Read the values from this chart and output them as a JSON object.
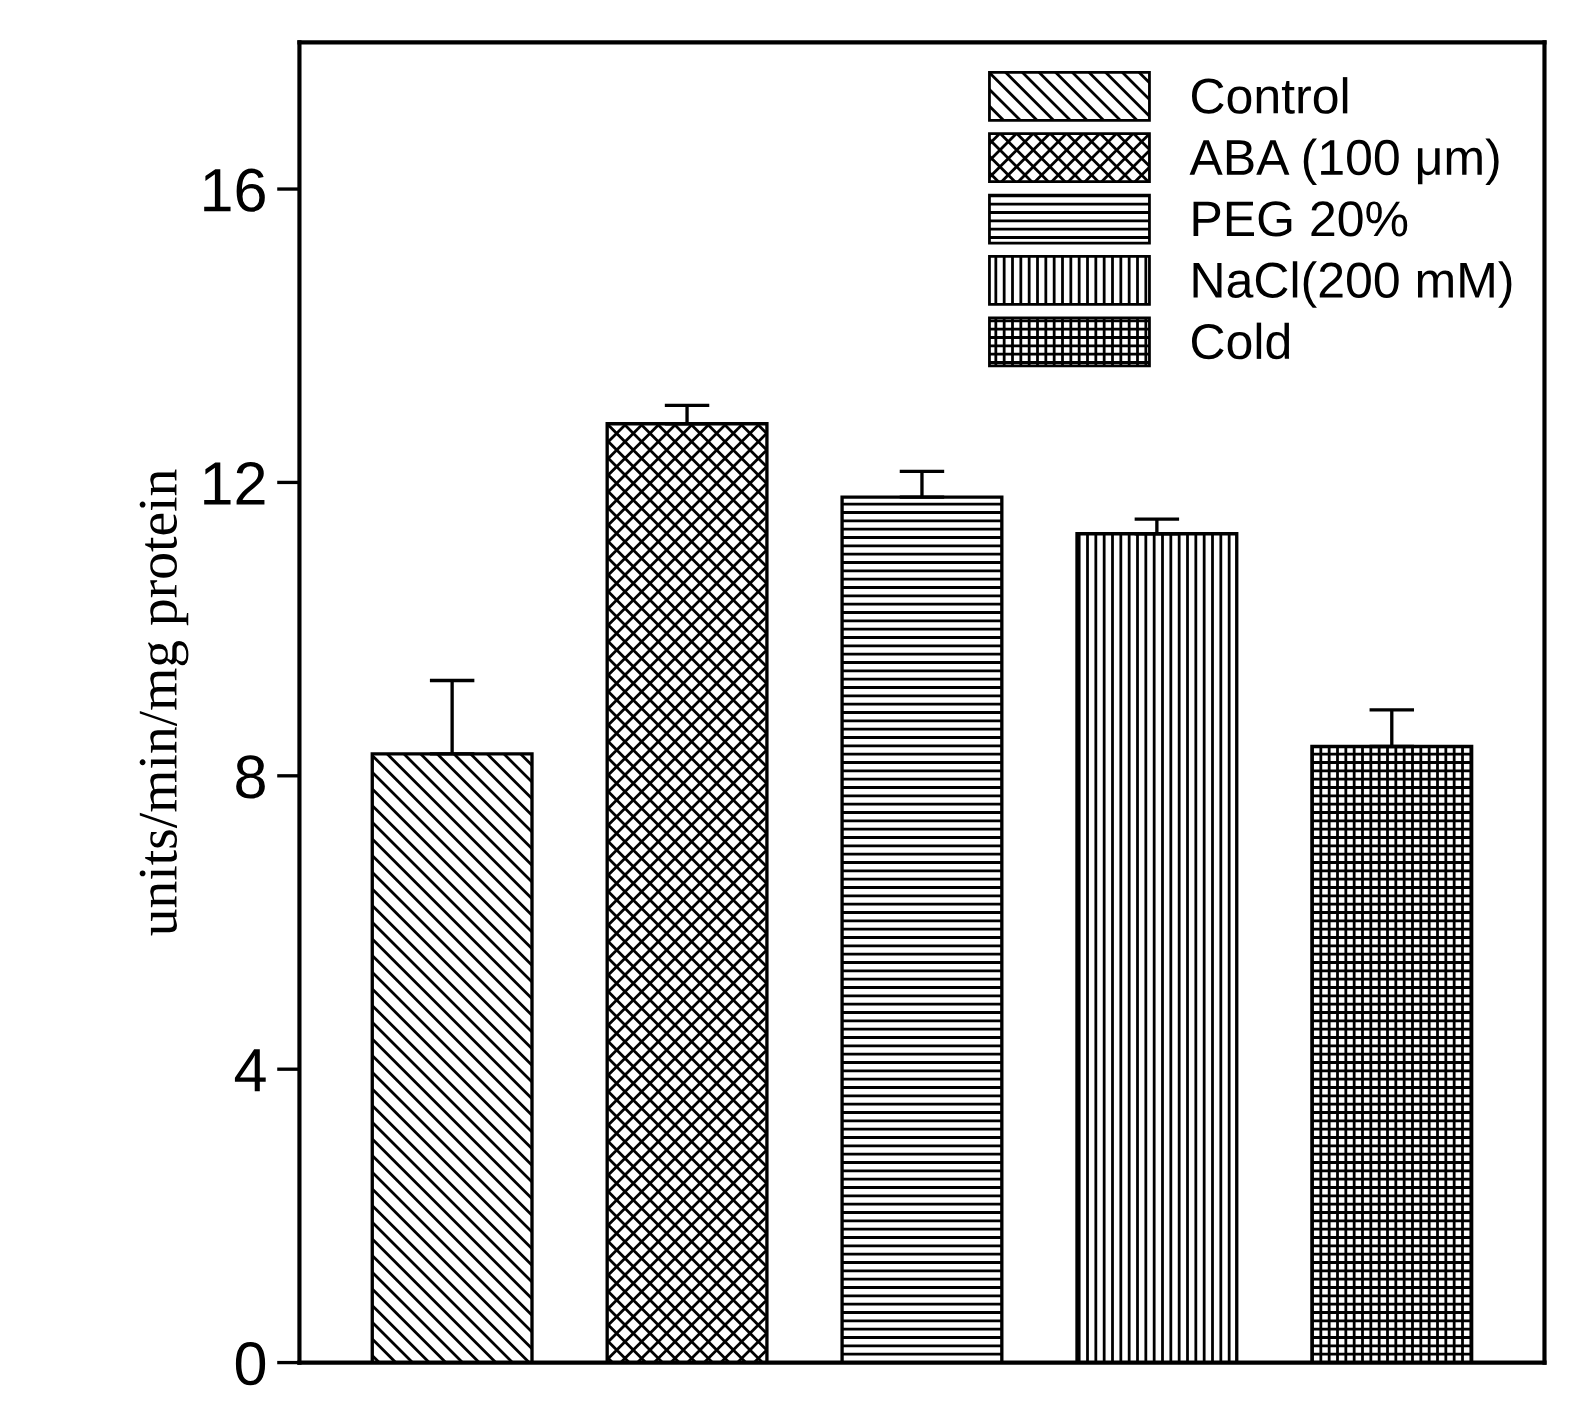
{
  "chart_data": {
    "type": "bar",
    "ylabel": "units/min/mg protein",
    "categories": [
      null,
      null,
      null,
      null,
      null
    ],
    "series": [
      {
        "name": "Control",
        "color": "#000000",
        "values": [
          8.3,
          null,
          null,
          null,
          null
        ],
        "errors": [
          1.0,
          null,
          null,
          null,
          null
        ]
      },
      {
        "name": "ABA (100 μm)",
        "color": "#000000",
        "values": [
          null,
          12.8,
          null,
          null,
          null
        ],
        "errors": [
          null,
          0.25,
          null,
          null,
          null
        ]
      },
      {
        "name": "PEG 20%",
        "color": "#000000",
        "values": [
          null,
          null,
          11.8,
          null,
          null
        ],
        "errors": [
          null,
          null,
          0.35,
          null,
          null
        ]
      },
      {
        "name": "NaCl(200 mM)",
        "color": "#000000",
        "values": [
          null,
          null,
          null,
          11.3,
          null
        ],
        "errors": [
          null,
          null,
          null,
          0.2,
          null
        ]
      },
      {
        "name": "Cold",
        "color": "#000000",
        "values": [
          null,
          null,
          null,
          null,
          8.4
        ],
        "errors": [
          null,
          null,
          null,
          null,
          0.5
        ]
      }
    ],
    "ylim": [
      0,
      18
    ],
    "yticks": [
      0,
      4,
      8,
      12,
      16
    ],
    "tick_labels": "y",
    "legend": "top right"
  }
}
